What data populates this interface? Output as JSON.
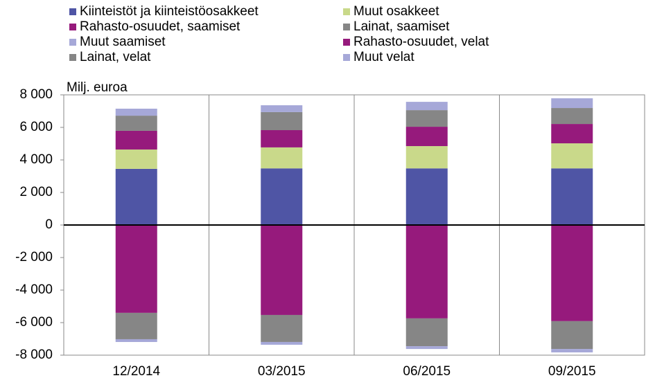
{
  "chart_data": {
    "type": "stacked-bar",
    "y_label": "Milj. euroa",
    "categories": [
      "12/2014",
      "03/2015",
      "06/2015",
      "09/2015"
    ],
    "series": [
      {
        "name": "Kiinteistöt ja kiinteistöosakkeet",
        "color": "#4f55a5",
        "values": [
          3450,
          3480,
          3480,
          3480
        ]
      },
      {
        "name": "Muut osakkeet",
        "color": "#c9d98a",
        "values": [
          1190,
          1290,
          1370,
          1540
        ]
      },
      {
        "name": "Rahasto-osuudet, saamiset",
        "color": "#961a7c",
        "values": [
          1150,
          1060,
          1190,
          1190
        ]
      },
      {
        "name": "Lainat, saamiset",
        "color": "#868686",
        "values": [
          930,
          1110,
          1020,
          980
        ]
      },
      {
        "name": "Muut saamiset",
        "color": "#a6a8d8",
        "values": [
          430,
          420,
          510,
          600
        ]
      },
      {
        "name": "Rahasto-osuudet, velat",
        "color": "#961a7c",
        "values": [
          -5400,
          -5530,
          -5740,
          -5910
        ]
      },
      {
        "name": "Lainat, velat",
        "color": "#868686",
        "values": [
          -1620,
          -1660,
          -1710,
          -1710
        ]
      },
      {
        "name": "Muut velat",
        "color": "#a6a8d8",
        "values": [
          -170,
          -170,
          -170,
          -210
        ]
      }
    ],
    "ylim": [
      -8000,
      8000
    ],
    "yticks": [
      {
        "value": -8000,
        "label": "-8 000"
      },
      {
        "value": -6000,
        "label": "-6 000"
      },
      {
        "value": -4000,
        "label": "-4 000"
      },
      {
        "value": -2000,
        "label": "-2 000"
      },
      0,
      {
        "value": 2000,
        "label": "2 000"
      },
      {
        "value": 4000,
        "label": "4 000"
      },
      {
        "value": 6000,
        "label": "6 000"
      },
      {
        "value": 8000,
        "label": "8 000"
      }
    ],
    "grid": false
  }
}
